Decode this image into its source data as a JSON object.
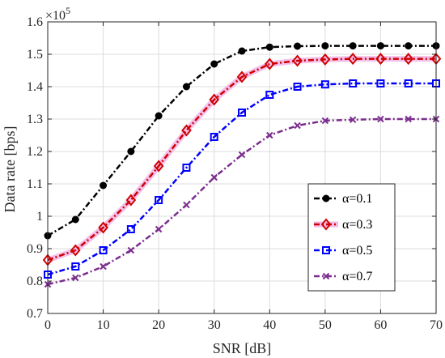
{
  "chart_data": {
    "type": "line",
    "xlabel": "SNR [dB]",
    "ylabel": "Data rate [bps]",
    "y_multiplier_label": "×10",
    "y_multiplier_exponent": "5",
    "xlim": [
      0,
      70
    ],
    "ylim": [
      0.7,
      1.6
    ],
    "x_ticks": [
      "0",
      "10",
      "20",
      "30",
      "40",
      "50",
      "60",
      "70"
    ],
    "y_ticks": [
      "0.7",
      "0.8",
      "0.9",
      "1",
      "1.1",
      "1.2",
      "1.3",
      "1.4",
      "1.5",
      "1.6"
    ],
    "grid": true,
    "legend_position": "bottom-right",
    "x": [
      0,
      5,
      10,
      15,
      20,
      25,
      30,
      35,
      40,
      45,
      50,
      55,
      60,
      65,
      70
    ],
    "series": [
      {
        "name": "α=0.1",
        "color": "#000000",
        "marker": "circle",
        "values": [
          0.94,
          0.99,
          1.095,
          1.2,
          1.31,
          1.4,
          1.47,
          1.51,
          1.522,
          1.525,
          1.526,
          1.526,
          1.526,
          1.526,
          1.526
        ]
      },
      {
        "name": "α=0.3",
        "color": "#d00000",
        "marker": "diamond",
        "values": [
          0.865,
          0.895,
          0.965,
          1.05,
          1.155,
          1.265,
          1.36,
          1.43,
          1.47,
          1.48,
          1.484,
          1.486,
          1.486,
          1.486,
          1.486
        ]
      },
      {
        "name": "α=0.5",
        "color": "#0000ff",
        "marker": "square",
        "values": [
          0.82,
          0.845,
          0.895,
          0.96,
          1.05,
          1.15,
          1.245,
          1.32,
          1.375,
          1.4,
          1.407,
          1.41,
          1.41,
          1.41,
          1.41
        ]
      },
      {
        "name": "α=0.7",
        "color": "#7b2d8e",
        "marker": "x",
        "values": [
          0.79,
          0.81,
          0.845,
          0.895,
          0.96,
          1.035,
          1.12,
          1.19,
          1.25,
          1.28,
          1.295,
          1.298,
          1.3,
          1.3,
          1.3
        ]
      }
    ]
  }
}
